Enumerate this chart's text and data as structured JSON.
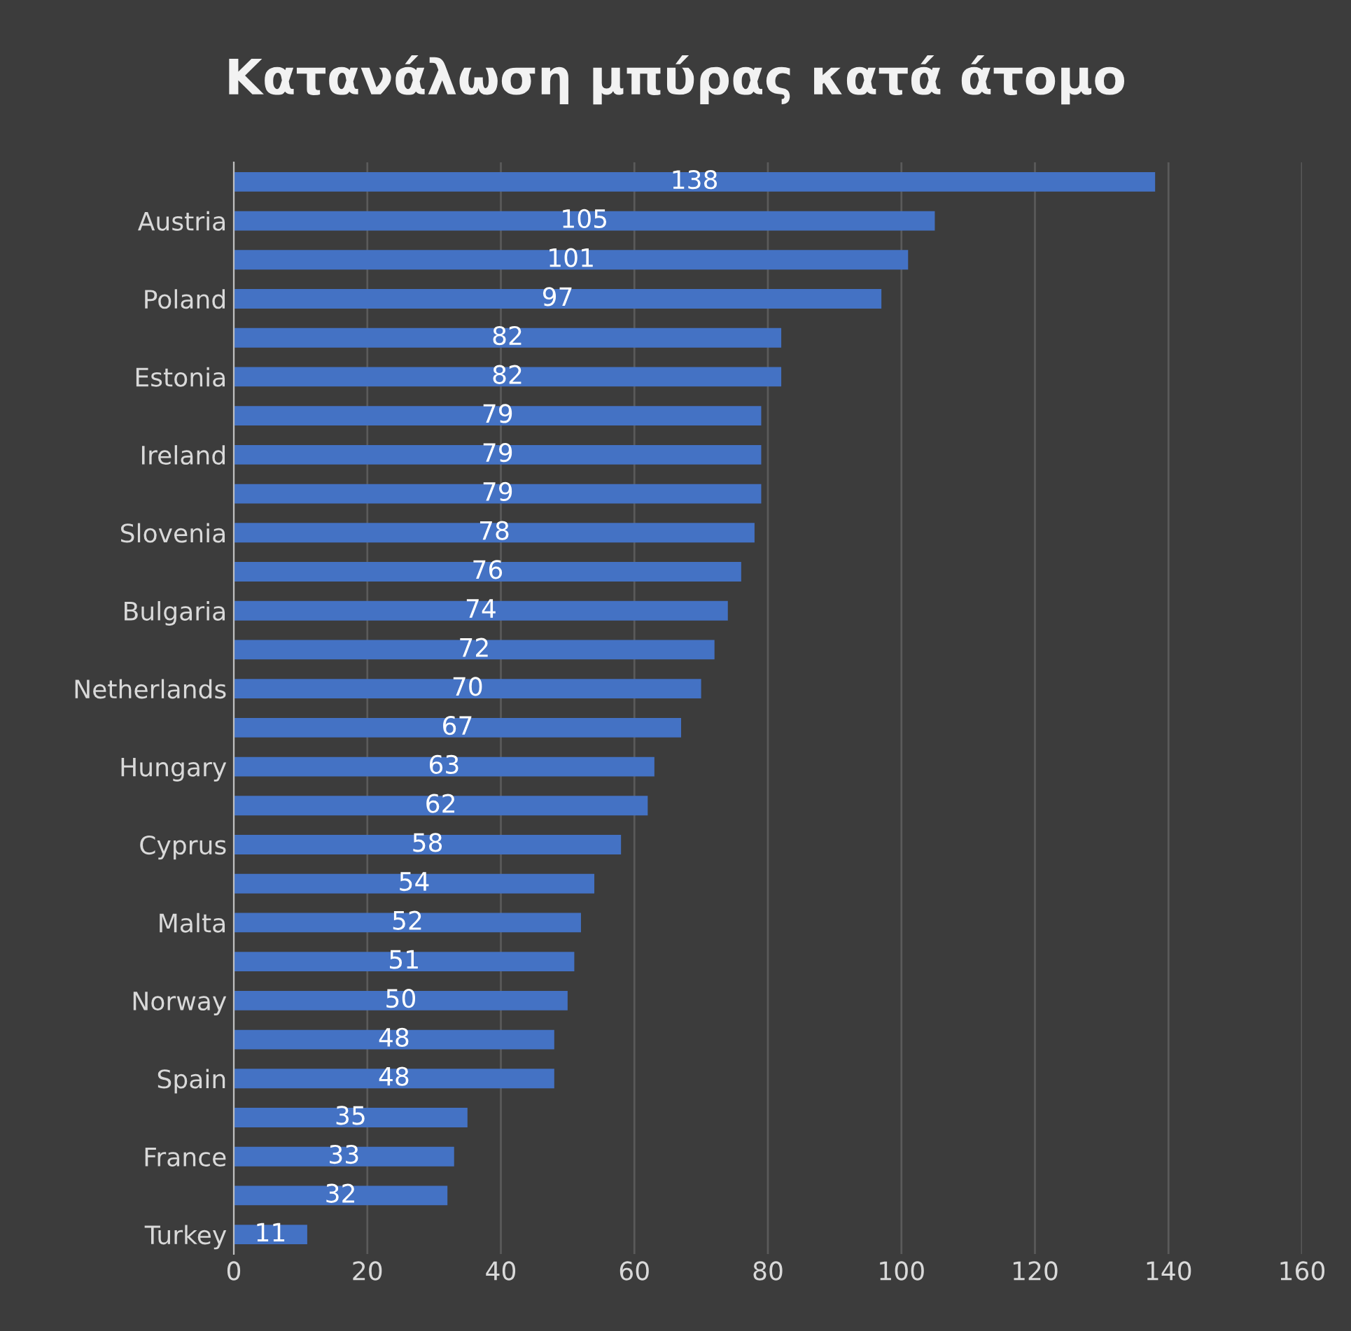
{
  "chart_data": {
    "type": "bar",
    "orientation": "horizontal",
    "title": "Κατανάλωση μπύρας κατά άτομο",
    "categories": [
      null,
      "Austria",
      null,
      "Poland",
      null,
      "Estonia",
      null,
      "Ireland",
      null,
      "Slovenia",
      null,
      "Bulgaria",
      null,
      "Netherlands",
      null,
      "Hungary",
      null,
      "Cyprus",
      null,
      "Malta",
      null,
      "Norway",
      null,
      "Spain",
      null,
      "France",
      null,
      "Turkey"
    ],
    "values": [
      138,
      105,
      101,
      97,
      82,
      82,
      79,
      79,
      79,
      78,
      76,
      74,
      72,
      70,
      67,
      63,
      62,
      58,
      54,
      52,
      51,
      50,
      48,
      48,
      35,
      33,
      32,
      11
    ],
    "color": "#4472c4",
    "xlim": [
      0,
      160
    ],
    "xticks": [
      0,
      20,
      40,
      60,
      80,
      100,
      120,
      140,
      160
    ],
    "grid": "x",
    "data_labels": true
  }
}
